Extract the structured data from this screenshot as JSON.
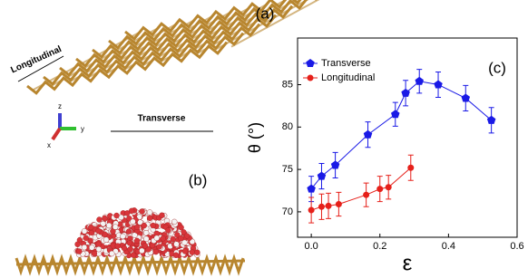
{
  "figure": {
    "panel_a": "(a)",
    "panel_b": "(b)",
    "direction_longitudinal": "Longitudinal",
    "direction_transverse": "Transverse",
    "axis_z": "z",
    "axis_y": "y",
    "axis_x": "x"
  },
  "chart_data": {
    "type": "scatter",
    "panel_label": "(c)",
    "x_label": "ε",
    "y_label": "θ (°)",
    "xlim": [
      -0.04,
      0.6
    ],
    "ylim": [
      67,
      90.5
    ],
    "xticks": [
      {
        "value": 0,
        "label": "0.0"
      },
      {
        "value": 0.2,
        "label": "0.2"
      },
      {
        "value": 0.4,
        "label": "0.4"
      },
      {
        "value": 0.6,
        "label": "0.6"
      }
    ],
    "yticks": [
      70,
      75,
      80,
      85
    ],
    "legend": "upper left",
    "series": [
      {
        "name": "Transverse",
        "color": "#1a1ae6",
        "marker": "pentagon",
        "x": [
          0.0,
          0.03,
          0.07,
          0.165,
          0.245,
          0.275,
          0.315,
          0.37,
          0.45,
          0.525
        ],
        "values": [
          72.7,
          74.2,
          75.5,
          79.1,
          81.5,
          84.0,
          85.4,
          85.0,
          83.4,
          80.8
        ],
        "errors": [
          1.5,
          1.5,
          1.5,
          1.5,
          1.4,
          1.5,
          1.4,
          1.5,
          1.5,
          1.5
        ]
      },
      {
        "name": "Longitudinal",
        "color": "#e6201a",
        "marker": "circle",
        "x": [
          0.0,
          0.03,
          0.05,
          0.08,
          0.16,
          0.2,
          0.225,
          0.29
        ],
        "values": [
          70.2,
          70.6,
          70.7,
          70.9,
          72.0,
          72.7,
          72.9,
          75.2
        ],
        "errors": [
          1.5,
          1.5,
          1.5,
          1.4,
          1.4,
          1.5,
          1.4,
          1.5
        ]
      }
    ]
  }
}
